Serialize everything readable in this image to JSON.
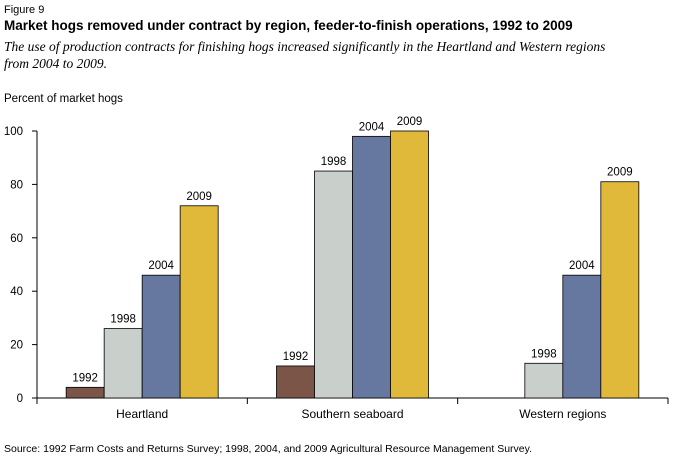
{
  "figure_label": "Figure 9",
  "chart_data": {
    "type": "bar",
    "title": "Market hogs removed under contract by region, feeder-to-finish operations, 1992 to 2009",
    "subtitle": "The use of production contracts for finishing hogs increased significantly in the Heartland and Western regions from 2004 to 2009.",
    "ylabel": "Percent of market hogs",
    "xlabel": "",
    "ylim": [
      0,
      100
    ],
    "yticks": [
      0,
      20,
      40,
      60,
      80,
      100
    ],
    "grid": false,
    "categories": [
      "Heartland",
      "Southern seaboard",
      "Western regions"
    ],
    "series": [
      {
        "name": "1992",
        "color": "#7a5548",
        "values": [
          4,
          12,
          null
        ]
      },
      {
        "name": "1998",
        "color": "#c9cfcb",
        "values": [
          26,
          85,
          13
        ]
      },
      {
        "name": "2004",
        "color": "#6677a0",
        "values": [
          46,
          98,
          46
        ]
      },
      {
        "name": "2009",
        "color": "#e0b83a",
        "values": [
          72,
          100,
          81
        ]
      }
    ]
  },
  "source": "Source: 1992 Farm Costs and Returns Survey; 1998, 2004, and 2009 Agricultural Resource Management Survey."
}
